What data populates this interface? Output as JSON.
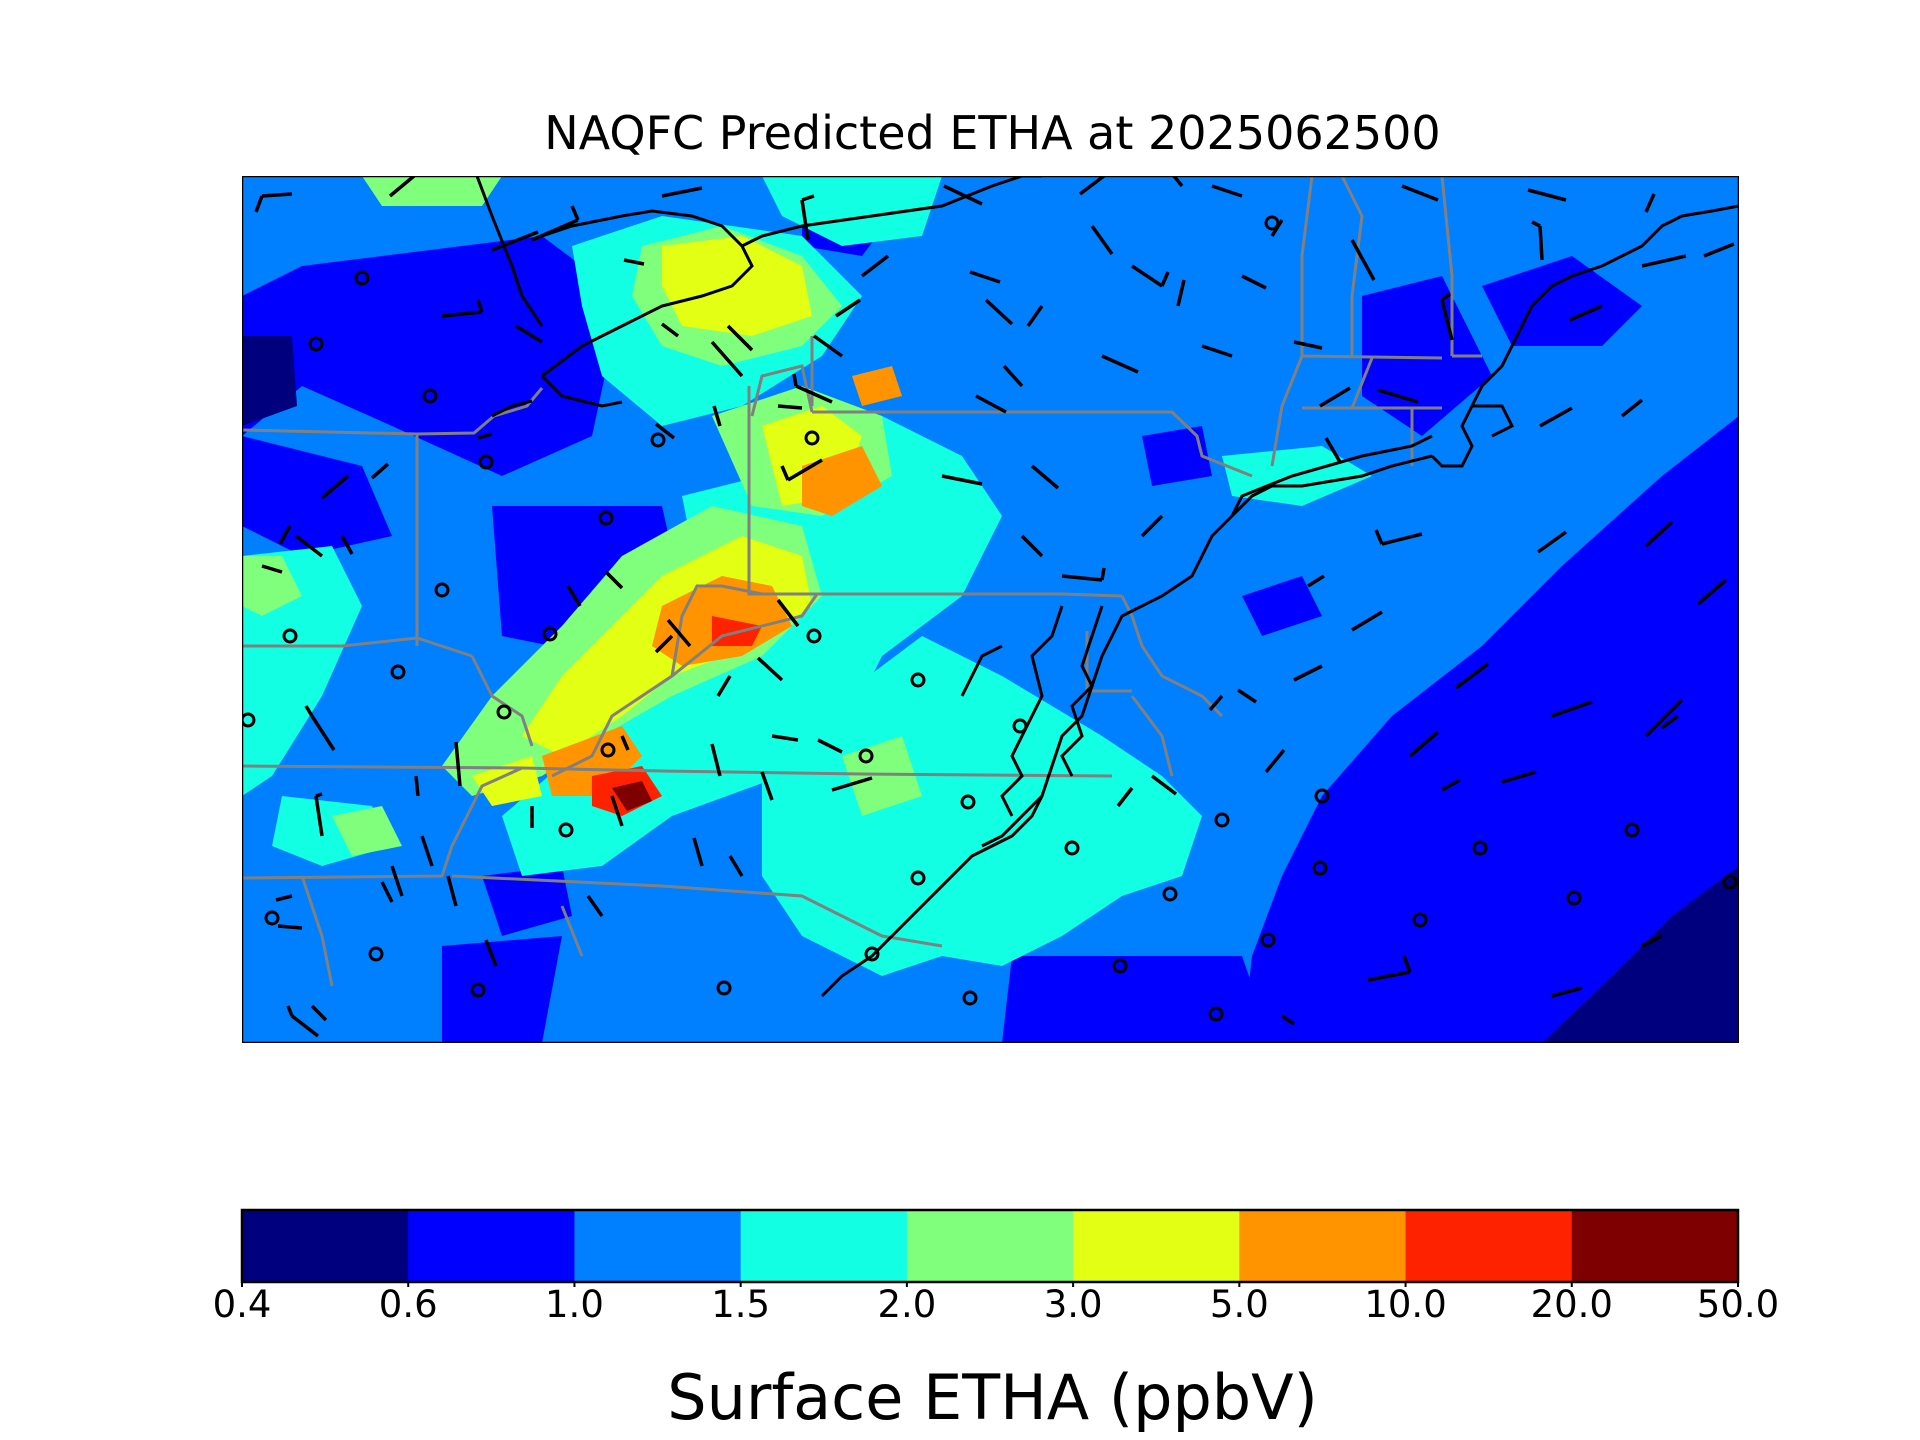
{
  "title": "NAQFC Predicted ETHA at 2025062500",
  "colorbar": {
    "label": "Surface ETHA (ppbV)",
    "ticks": [
      "0.4",
      "0.6",
      "1.0",
      "1.5",
      "2.0",
      "3.0",
      "5.0",
      "10.0",
      "20.0",
      "50.0"
    ],
    "colors": [
      "#00007f",
      "#0000ff",
      "#007fff",
      "#13ffe3",
      "#7fff7c",
      "#e3ff13",
      "#ff9400",
      "#ff2200",
      "#7f0000"
    ]
  },
  "map": {
    "background_level_color": "#007fff",
    "coastline_color": "#000000",
    "state_border_color": "#808080"
  }
}
